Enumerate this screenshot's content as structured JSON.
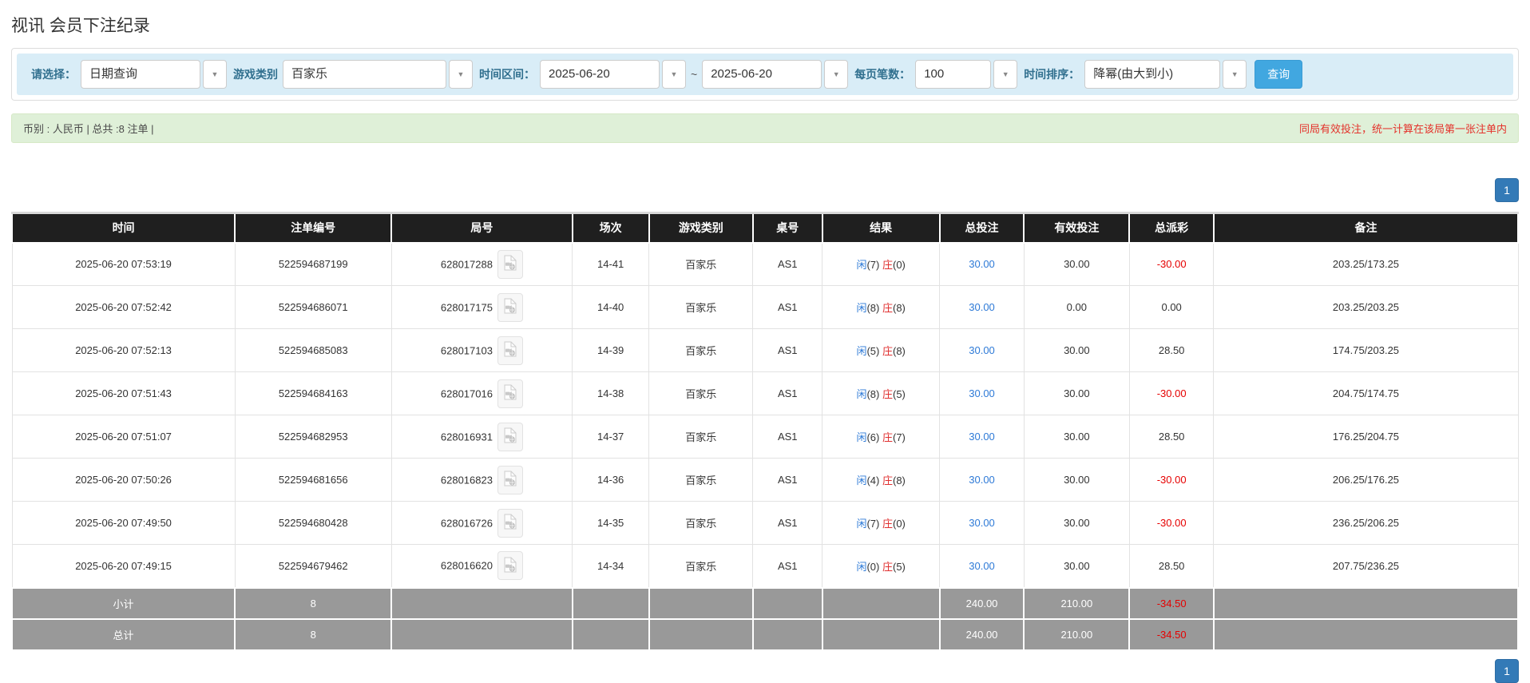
{
  "page": {
    "title": "视讯 会员下注纪录"
  },
  "filters": {
    "select_label": "请选择：",
    "select_value": "日期查询",
    "game_type_label": "游戏类别",
    "game_type_value": "百家乐",
    "date_range_label": "时间区间：",
    "date_from": "2025-06-20",
    "date_separator": "~",
    "date_to": "2025-06-20",
    "page_size_label": "每页笔数：",
    "page_size_value": "100",
    "sort_label": "时间排序：",
    "sort_value": "降幂(由大到小)",
    "search_button": "查询"
  },
  "summary": {
    "left_text": "币别 : 人民币 | 总共 :8 注单 |",
    "right_text": "同局有效投注，统一计算在该局第一张注单内"
  },
  "pagination": {
    "page": "1"
  },
  "icons": {
    "dropdown": "chevron-down-icon",
    "round_action": "video-record-icon"
  },
  "colors": {
    "accent_blue": "#337ab7",
    "search_button_blue": "#41a7e0",
    "link_blue": "#2e7ad7",
    "loss_red": "#e60000",
    "banker_red": "#e03030",
    "player_blue": "#2e7ad7",
    "header_bg": "#1f1f1f",
    "footer_bg": "#999999",
    "filter_bg": "#d9edf7",
    "summary_bg": "#dff0d8",
    "warning_red": "#e4322b"
  },
  "table": {
    "columns": [
      "时间",
      "注单编号",
      "局号",
      "场次",
      "游戏类别",
      "桌号",
      "结果",
      "总投注",
      "有效投注",
      "总派彩",
      "备注"
    ],
    "result_labels": {
      "player": "闲",
      "banker": "庄"
    },
    "rows": [
      {
        "time": "2025-06-20 07:53:19",
        "bet_no": "522594687199",
        "round_no": "628017288",
        "session": "14-41",
        "game": "百家乐",
        "table_no": "AS1",
        "player": "7",
        "banker": "0",
        "total_bet": "30.00",
        "valid_bet": "30.00",
        "payout": "-30.00",
        "note": "203.25/173.25"
      },
      {
        "time": "2025-06-20 07:52:42",
        "bet_no": "522594686071",
        "round_no": "628017175",
        "session": "14-40",
        "game": "百家乐",
        "table_no": "AS1",
        "player": "8",
        "banker": "8",
        "total_bet": "30.00",
        "valid_bet": "0.00",
        "payout": "0.00",
        "note": "203.25/203.25"
      },
      {
        "time": "2025-06-20 07:52:13",
        "bet_no": "522594685083",
        "round_no": "628017103",
        "session": "14-39",
        "game": "百家乐",
        "table_no": "AS1",
        "player": "5",
        "banker": "8",
        "total_bet": "30.00",
        "valid_bet": "30.00",
        "payout": "28.50",
        "note": "174.75/203.25"
      },
      {
        "time": "2025-06-20 07:51:43",
        "bet_no": "522594684163",
        "round_no": "628017016",
        "session": "14-38",
        "game": "百家乐",
        "table_no": "AS1",
        "player": "8",
        "banker": "5",
        "total_bet": "30.00",
        "valid_bet": "30.00",
        "payout": "-30.00",
        "note": "204.75/174.75"
      },
      {
        "time": "2025-06-20 07:51:07",
        "bet_no": "522594682953",
        "round_no": "628016931",
        "session": "14-37",
        "game": "百家乐",
        "table_no": "AS1",
        "player": "6",
        "banker": "7",
        "total_bet": "30.00",
        "valid_bet": "30.00",
        "payout": "28.50",
        "note": "176.25/204.75"
      },
      {
        "time": "2025-06-20 07:50:26",
        "bet_no": "522594681656",
        "round_no": "628016823",
        "session": "14-36",
        "game": "百家乐",
        "table_no": "AS1",
        "player": "4",
        "banker": "8",
        "total_bet": "30.00",
        "valid_bet": "30.00",
        "payout": "-30.00",
        "note": "206.25/176.25"
      },
      {
        "time": "2025-06-20 07:49:50",
        "bet_no": "522594680428",
        "round_no": "628016726",
        "session": "14-35",
        "game": "百家乐",
        "table_no": "AS1",
        "player": "7",
        "banker": "0",
        "total_bet": "30.00",
        "valid_bet": "30.00",
        "payout": "-30.00",
        "note": "236.25/206.25"
      },
      {
        "time": "2025-06-20 07:49:15",
        "bet_no": "522594679462",
        "round_no": "628016620",
        "session": "14-34",
        "game": "百家乐",
        "table_no": "AS1",
        "player": "0",
        "banker": "5",
        "total_bet": "30.00",
        "valid_bet": "30.00",
        "payout": "28.50",
        "note": "207.75/236.25"
      }
    ],
    "footer": [
      {
        "label": "小计",
        "count": "8",
        "total_bet": "240.00",
        "valid_bet": "210.00",
        "payout": "-34.50"
      },
      {
        "label": "总计",
        "count": "8",
        "total_bet": "240.00",
        "valid_bet": "210.00",
        "payout": "-34.50"
      }
    ]
  }
}
